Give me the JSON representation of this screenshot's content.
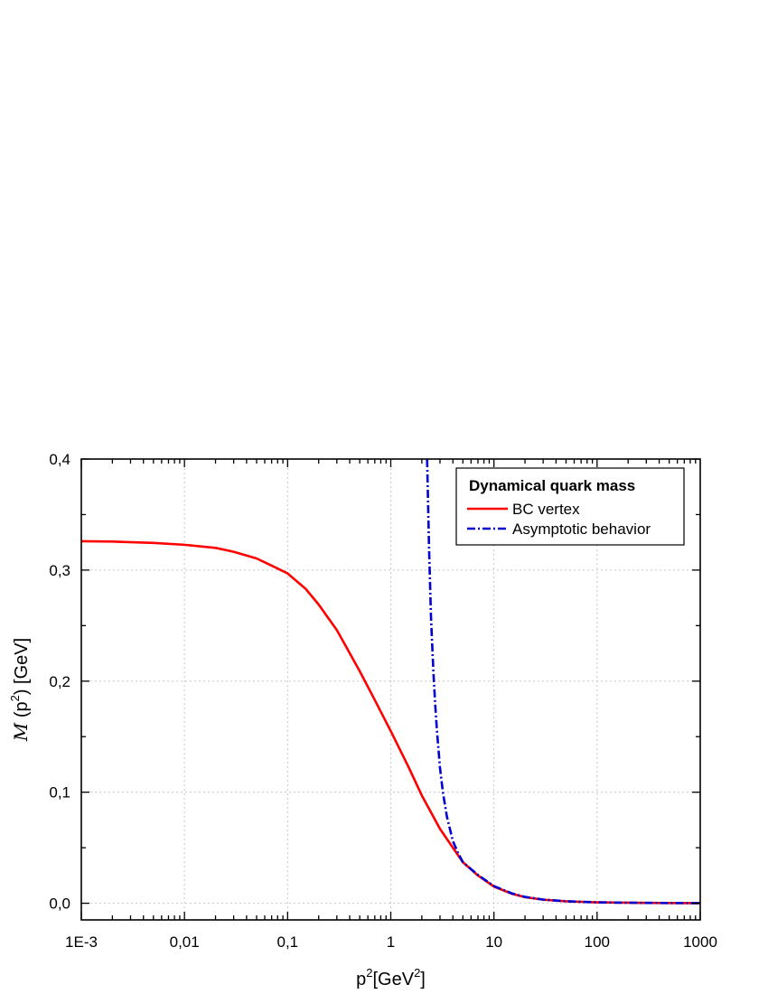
{
  "chart_data": {
    "type": "line",
    "xscale": "log",
    "xlim": [
      0.001,
      1000
    ],
    "ylim": [
      -0.015,
      0.4
    ],
    "x_ticks": [
      0.001,
      0.01,
      0.1,
      1,
      10,
      100,
      1000
    ],
    "x_tick_labels": [
      "1E-3",
      "0,01",
      "0,1",
      "1",
      "10",
      "100",
      "1000"
    ],
    "y_ticks": [
      0.0,
      0.1,
      0.2,
      0.3,
      0.4
    ],
    "y_tick_labels": [
      "0,0",
      "0,1",
      "0,2",
      "0,3",
      "0,4"
    ],
    "xlabel": {
      "base": "p",
      "sup": "2",
      "unit_prefix": "[GeV",
      "unit_sup": "2",
      "unit_suffix": "]"
    },
    "ylabel": {
      "symbol": "M",
      "open": " (p",
      "sup": "2",
      "close": ") [GeV]"
    },
    "grid": true,
    "legend": {
      "title": "Dynamical quark mass",
      "position": "top-right"
    },
    "series": [
      {
        "name": "BC vertex",
        "color": "#ff0000",
        "style": "solid",
        "points": [
          [
            0.001,
            0.326
          ],
          [
            0.002,
            0.3257
          ],
          [
            0.005,
            0.3245
          ],
          [
            0.01,
            0.3228
          ],
          [
            0.02,
            0.32
          ],
          [
            0.03,
            0.3165
          ],
          [
            0.05,
            0.3105
          ],
          [
            0.07,
            0.304
          ],
          [
            0.1,
            0.297
          ],
          [
            0.15,
            0.283
          ],
          [
            0.2,
            0.269
          ],
          [
            0.3,
            0.246
          ],
          [
            0.5,
            0.209
          ],
          [
            0.7,
            0.183
          ],
          [
            1,
            0.155
          ],
          [
            1.5,
            0.122
          ],
          [
            2,
            0.097
          ],
          [
            3,
            0.067
          ],
          [
            4,
            0.05
          ],
          [
            5,
            0.037
          ],
          [
            7,
            0.025
          ],
          [
            10,
            0.015
          ],
          [
            15,
            0.0085
          ],
          [
            20,
            0.0055
          ],
          [
            30,
            0.0032
          ],
          [
            50,
            0.0017
          ],
          [
            100,
            0.0008
          ],
          [
            300,
            0.0003
          ],
          [
            1000,
            0.0001
          ]
        ]
      },
      {
        "name": "Asymptotic behavior",
        "color": "#0000d0",
        "style": "dash-dot",
        "points": [
          [
            2.25,
            0.4
          ],
          [
            2.3,
            0.36
          ],
          [
            2.35,
            0.32
          ],
          [
            2.4,
            0.29
          ],
          [
            2.45,
            0.26
          ],
          [
            2.5,
            0.24
          ],
          [
            2.6,
            0.205
          ],
          [
            2.7,
            0.178
          ],
          [
            2.8,
            0.156
          ],
          [
            3,
            0.122
          ],
          [
            3.2,
            0.1
          ],
          [
            3.5,
            0.078
          ],
          [
            4,
            0.056
          ],
          [
            4.5,
            0.045
          ],
          [
            5,
            0.037
          ],
          [
            7,
            0.0255
          ],
          [
            10,
            0.0155
          ],
          [
            15,
            0.0088
          ],
          [
            20,
            0.0057
          ],
          [
            30,
            0.0033
          ],
          [
            50,
            0.0018
          ],
          [
            100,
            0.0008
          ],
          [
            300,
            0.0003
          ],
          [
            1000,
            0.0001
          ]
        ]
      }
    ]
  }
}
